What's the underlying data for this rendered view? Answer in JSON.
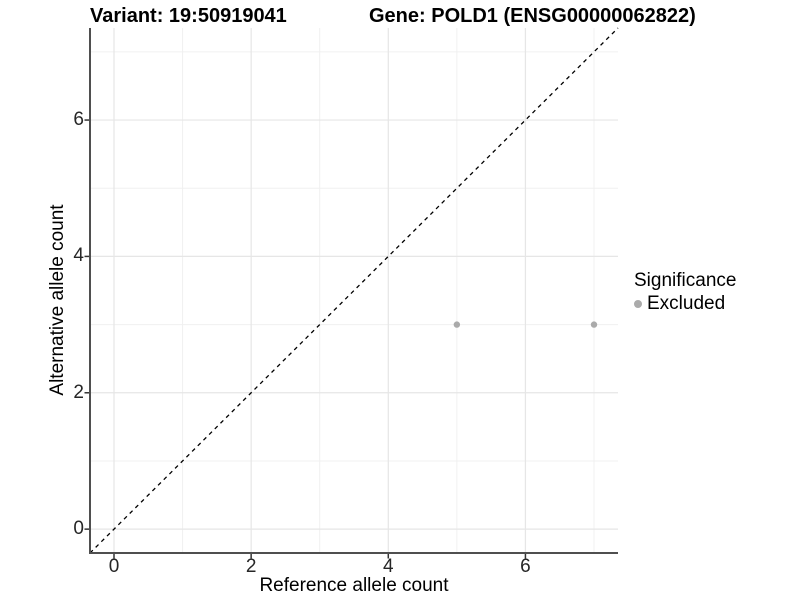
{
  "chart_data": {
    "type": "scatter",
    "title_left": "Variant: 19:50919041",
    "title_right": "Gene: POLD1 (ENSG00000062822)",
    "xlabel": "Reference allele count",
    "ylabel": "Alternative allele count",
    "xlim": [
      -0.35,
      7.35
    ],
    "ylim": [
      -0.35,
      7.35
    ],
    "x_ticks": [
      0,
      2,
      4,
      6
    ],
    "y_ticks": [
      0,
      2,
      4,
      6
    ],
    "x_minor_ticks": [
      1,
      3,
      5,
      7
    ],
    "y_minor_ticks": [
      1,
      3,
      5,
      7
    ],
    "grid": true,
    "series": [
      {
        "name": "Excluded",
        "color": "#aaaaaa",
        "points": [
          {
            "x": 5,
            "y": 3
          },
          {
            "x": 7,
            "y": 3
          }
        ]
      }
    ],
    "reference_line": {
      "type": "abline",
      "slope": 1,
      "intercept": 0,
      "style": "dashed",
      "color": "#000000"
    },
    "legend": {
      "title": "Significance",
      "position": "right",
      "items": [
        {
          "label": "Excluded",
          "color": "#ababab"
        }
      ]
    },
    "colors": {
      "axis_line": "#4f4f4f",
      "tick_mark": "#333333",
      "grid_major": "#e6e6e6",
      "grid_minor": "#f0f0f0",
      "background": "#ffffff"
    }
  }
}
